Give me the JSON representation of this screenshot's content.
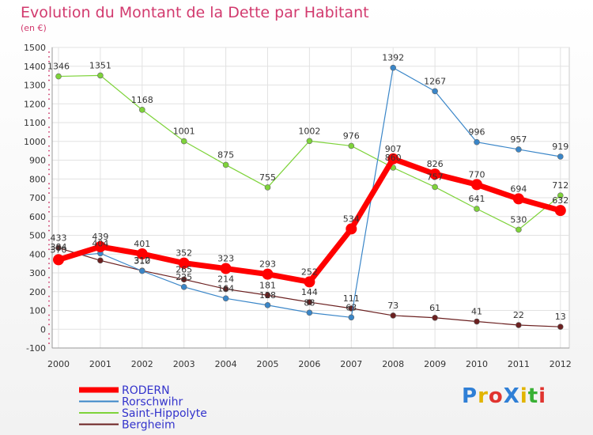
{
  "title": "Evolution du Montant de la Dette par Habitant",
  "subtitle": "(en €)",
  "logo": {
    "text": "ProXiti",
    "letters": [
      "P",
      "r",
      "o",
      "X",
      "i",
      "t",
      "i"
    ],
    "colors": [
      "#2f7fd6",
      "#e2b400",
      "#e0342f",
      "#2f7fd6",
      "#e2b400",
      "#38b034",
      "#e0342f"
    ]
  },
  "chart_data": {
    "type": "line",
    "x": [
      2000,
      2001,
      2002,
      2003,
      2004,
      2005,
      2006,
      2007,
      2008,
      2009,
      2010,
      2011,
      2012
    ],
    "xlabels": [
      "2000",
      "2001",
      "2002",
      "2003",
      "2004",
      "2005",
      "2006",
      "2007",
      "2008",
      "2009",
      "2010",
      "2011",
      "2012"
    ],
    "ylim": [
      -100,
      1500
    ],
    "yticks": [
      -100,
      0,
      100,
      200,
      300,
      400,
      500,
      600,
      700,
      800,
      900,
      1000,
      1100,
      1200,
      1300,
      1400,
      1500
    ],
    "ytick_labels": [
      "-100",
      "0",
      "100",
      "200",
      "300",
      "400",
      "500",
      "600",
      "700",
      "800",
      "900",
      "1000",
      "1100",
      "1200",
      "1300",
      "1400",
      "1500"
    ],
    "grid": true,
    "legend": "bottom-left",
    "series": [
      {
        "name": "Bergheim",
        "color": "#6b2020",
        "width": 1.2,
        "marker": 3.5,
        "values": [
          433,
          366,
          312,
          265,
          214,
          181,
          144,
          111,
          73,
          61,
          41,
          22,
          13
        ],
        "labels": [
          "433",
          "",
          "312",
          "265",
          "214",
          "181",
          "144",
          "111",
          "73",
          "61",
          "41",
          "22",
          "13"
        ]
      },
      {
        "name": "Saint-Hippolyte",
        "color": "#7ed33a",
        "width": 1.2,
        "marker": 3.5,
        "values": [
          1346,
          1351,
          1168,
          1001,
          875,
          755,
          1002,
          976,
          860,
          757,
          641,
          530,
          712
        ],
        "labels": [
          "1346",
          "1351",
          "1168",
          "1001",
          "875",
          "755",
          "1002",
          "976",
          "860",
          "757",
          "641",
          "530",
          "712"
        ]
      },
      {
        "name": "Rorschwihr",
        "color": "#3a86c8",
        "width": 1.2,
        "marker": 3.5,
        "values": [
          384,
          404,
          310,
          225,
          164,
          128,
          88,
          63,
          1392,
          1267,
          996,
          957,
          919
        ],
        "labels": [
          "384",
          "404",
          "310",
          "225",
          "164",
          "128",
          "88",
          "63",
          "1392",
          "1267",
          "996",
          "957",
          "919"
        ]
      },
      {
        "name": "RODERN",
        "color": "#ff0000",
        "width": 7,
        "marker": 7,
        "values": [
          370,
          439,
          401,
          352,
          323,
          293,
          252,
          534,
          907,
          826,
          770,
          694,
          632
        ],
        "labels": [
          "370",
          "439",
          "401",
          "352",
          "323",
          "293",
          "252",
          "534",
          "907",
          "826",
          "770",
          "694",
          "632"
        ]
      }
    ],
    "legend_entries": [
      {
        "name": "RODERN",
        "color": "#ff0000",
        "width": 7
      },
      {
        "name": "Rorschwihr",
        "color": "#3a86c8",
        "width": 2
      },
      {
        "name": "Saint-Hippolyte",
        "color": "#7ed33a",
        "width": 2
      },
      {
        "name": "Bergheim",
        "color": "#6b2020",
        "width": 2
      }
    ]
  }
}
